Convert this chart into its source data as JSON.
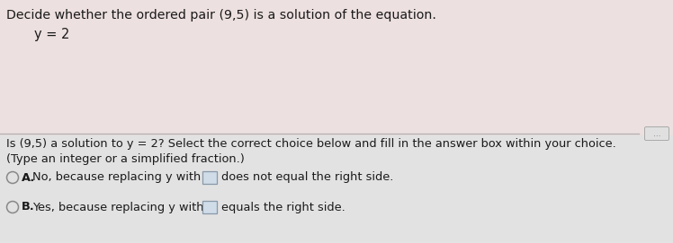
{
  "title_text": "Decide whether the ordered pair (9,5) is a solution of the equation.",
  "equation": "y = 2",
  "question_text": "Is (9,5) a solution to y = 2? Select the correct choice below and fill in the answer box within your choice.",
  "subtext": "(Type an integer or a simplified fraction.)",
  "option_a_prefix": "No, because replacing y with",
  "option_a_suffix": "does not equal the right side.",
  "option_b_prefix": "Yes, because replacing y with",
  "option_b_suffix": "equals the right side.",
  "bg_top": "#ede0e0",
  "bg_bottom": "#e2e2e2",
  "divider_color": "#b0b0b0",
  "text_color": "#1a1a1a",
  "circle_edge_color": "#888888",
  "box_face_color": "#d0dce8",
  "box_edge_color": "#8899aa",
  "dots_bg": "#e0e0e0",
  "dots_edge": "#aaaaaa",
  "dots_text_color": "#777777"
}
